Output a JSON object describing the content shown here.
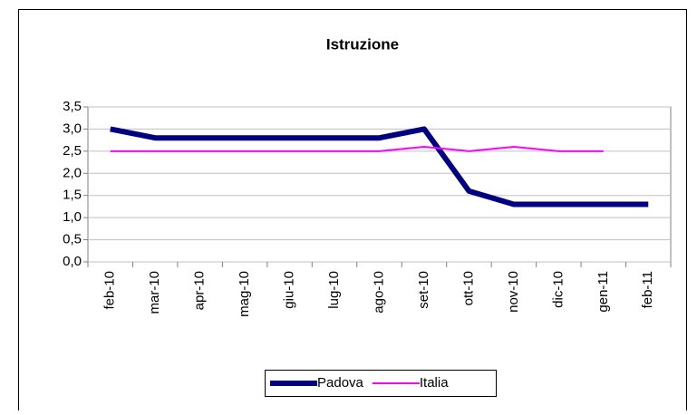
{
  "chart_data": {
    "type": "line",
    "title": "Istruzione",
    "categories": [
      "feb-10",
      "mar-10",
      "apr-10",
      "mag-10",
      "giu-10",
      "lug-10",
      "ago-10",
      "set-10",
      "ott-10",
      "nov-10",
      "dic-10",
      "gen-11",
      "feb-11"
    ],
    "series": [
      {
        "name": "Padova",
        "color": "#000080",
        "values": [
          3.0,
          2.8,
          2.8,
          2.8,
          2.8,
          2.8,
          2.8,
          3.0,
          1.6,
          1.3,
          1.3,
          1.3,
          1.3
        ]
      },
      {
        "name": "Italia",
        "color": "#ff00ff",
        "values": [
          2.5,
          2.5,
          2.5,
          2.5,
          2.5,
          2.5,
          2.5,
          2.6,
          2.5,
          2.6,
          2.5,
          2.5,
          null
        ]
      }
    ],
    "ylim": [
      0,
      3.5
    ],
    "yticks": [
      {
        "value": 0,
        "label": "0,0"
      },
      {
        "value": 0.5,
        "label": "0,5"
      },
      {
        "value": 1,
        "label": "1,0"
      },
      {
        "value": 1.5,
        "label": "1,5"
      },
      {
        "value": 2,
        "label": "2,0"
      },
      {
        "value": 2.5,
        "label": "2,5"
      },
      {
        "value": 3,
        "label": "3,0"
      },
      {
        "value": 3.5,
        "label": "3,5"
      }
    ],
    "grid": true,
    "legend": "bottom"
  }
}
